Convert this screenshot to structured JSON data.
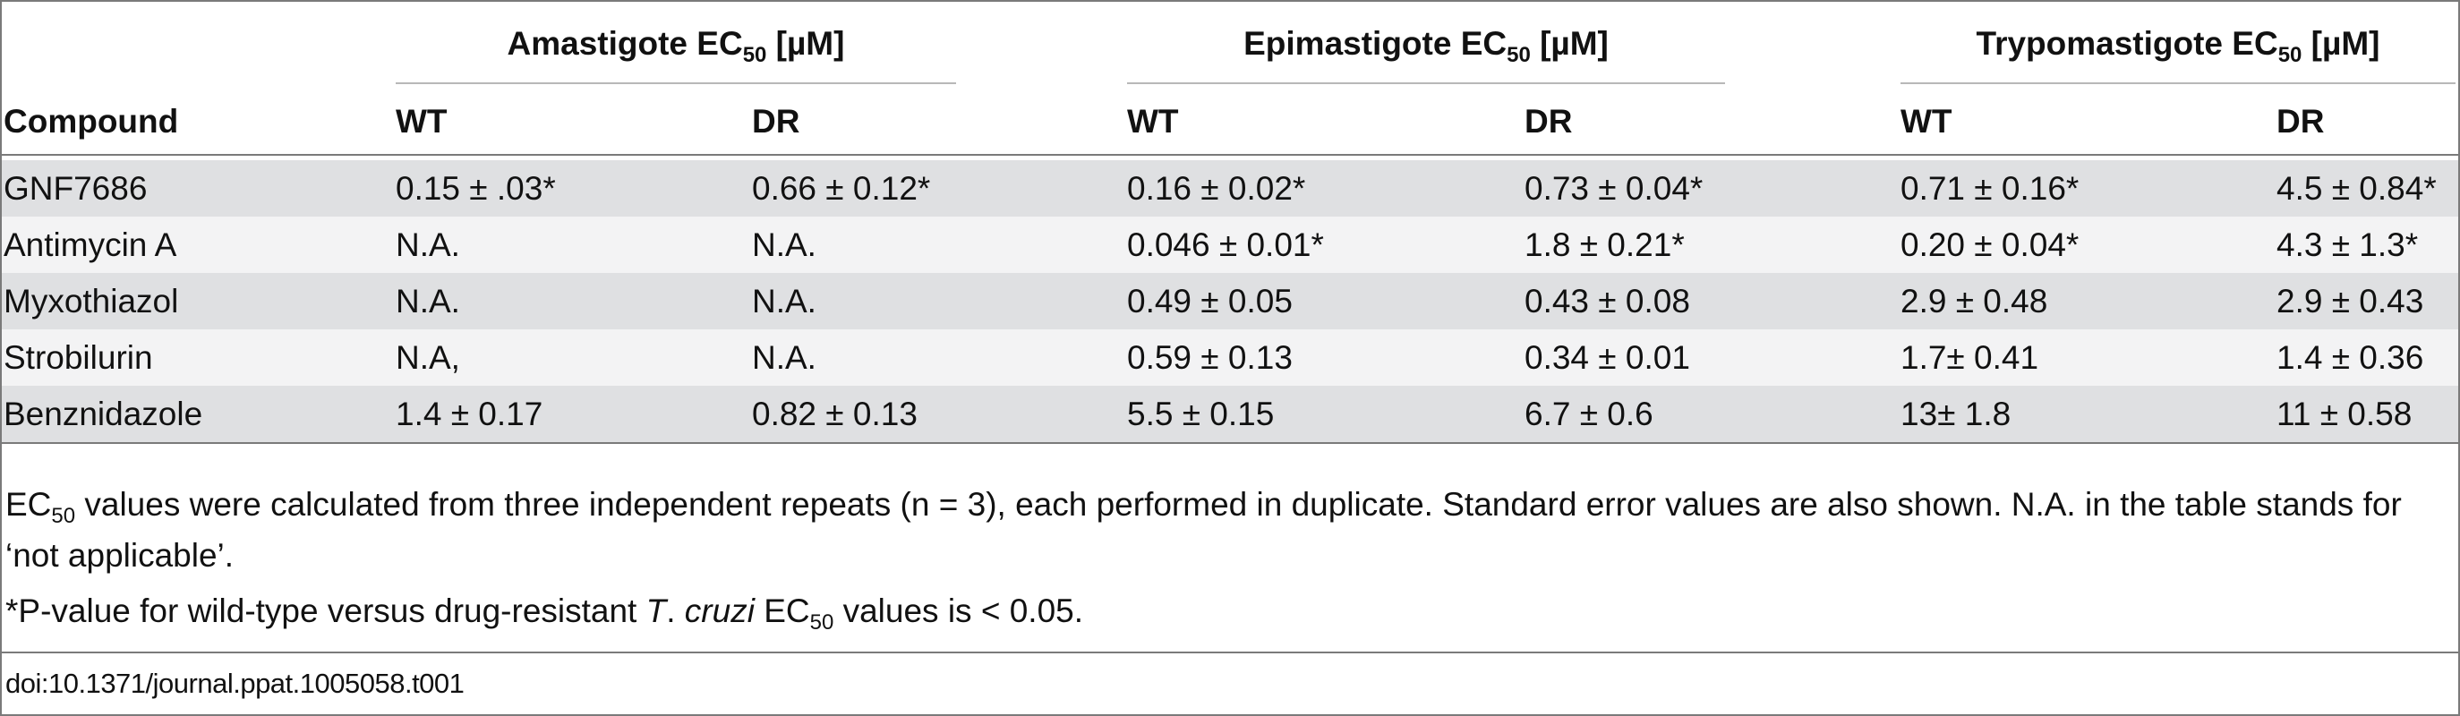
{
  "table": {
    "groups": [
      {
        "name": "Amastigote EC",
        "sub": "50",
        "unit": " [µM]"
      },
      {
        "name": "Epimastigote EC",
        "sub": "50",
        "unit": " [µM]"
      },
      {
        "name": "Trypomastigote EC",
        "sub": "50",
        "unit": " [µM]"
      }
    ],
    "columns": [
      "Compound",
      "WT",
      "DR",
      "WT",
      "DR",
      "WT",
      "DR"
    ],
    "rows": [
      [
        "GNF7686",
        "0.15 ± .03*",
        "0.66 ± 0.12*",
        "0.16 ± 0.02*",
        "0.73 ± 0.04*",
        "0.71 ± 0.16*",
        "4.5 ± 0.84*"
      ],
      [
        "Antimycin A",
        "N.A.",
        "N.A.",
        "0.046 ± 0.01*",
        "1.8 ± 0.21*",
        "0.20 ± 0.04*",
        "4.3 ± 1.3*"
      ],
      [
        "Myxothiazol",
        "N.A.",
        "N.A.",
        "0.49 ± 0.05",
        "0.43 ± 0.08",
        "2.9 ± 0.48",
        "2.9 ± 0.43"
      ],
      [
        "Strobilurin",
        "N.A,",
        "N.A.",
        "0.59 ± 0.13",
        "0.34 ± 0.01",
        "1.7± 0.41",
        "1.4 ± 0.36"
      ],
      [
        "Benznidazole",
        "1.4 ± 0.17",
        "0.82 ± 0.13",
        "5.5 ± 0.15",
        "6.7 ± 0.6",
        "13± 1.8",
        "11 ± 0.58"
      ]
    ]
  },
  "footnotes": {
    "note1_prefix": "EC",
    "note1_sub": "50",
    "note1_rest": " values were calculated from three independent repeats (n = 3), each performed in duplicate. Standard error values are also shown. N.A. in the table stands for ‘not applicable’.",
    "note2_prefix": "*P-value for wild-type versus drug-resistant ",
    "note2_italic_t": "T",
    "note2_dot": ". ",
    "note2_italic_cruzi": "cruzi",
    "note2_ec": " EC",
    "note2_sub": "50",
    "note2_rest": " values is < 0.05."
  },
  "doi": "doi:10.1371/journal.ppat.1005058.t001",
  "colors": {
    "row_dark": "#dfe0e2",
    "row_light": "#f3f3f4",
    "rule": "#7a7a7a"
  }
}
